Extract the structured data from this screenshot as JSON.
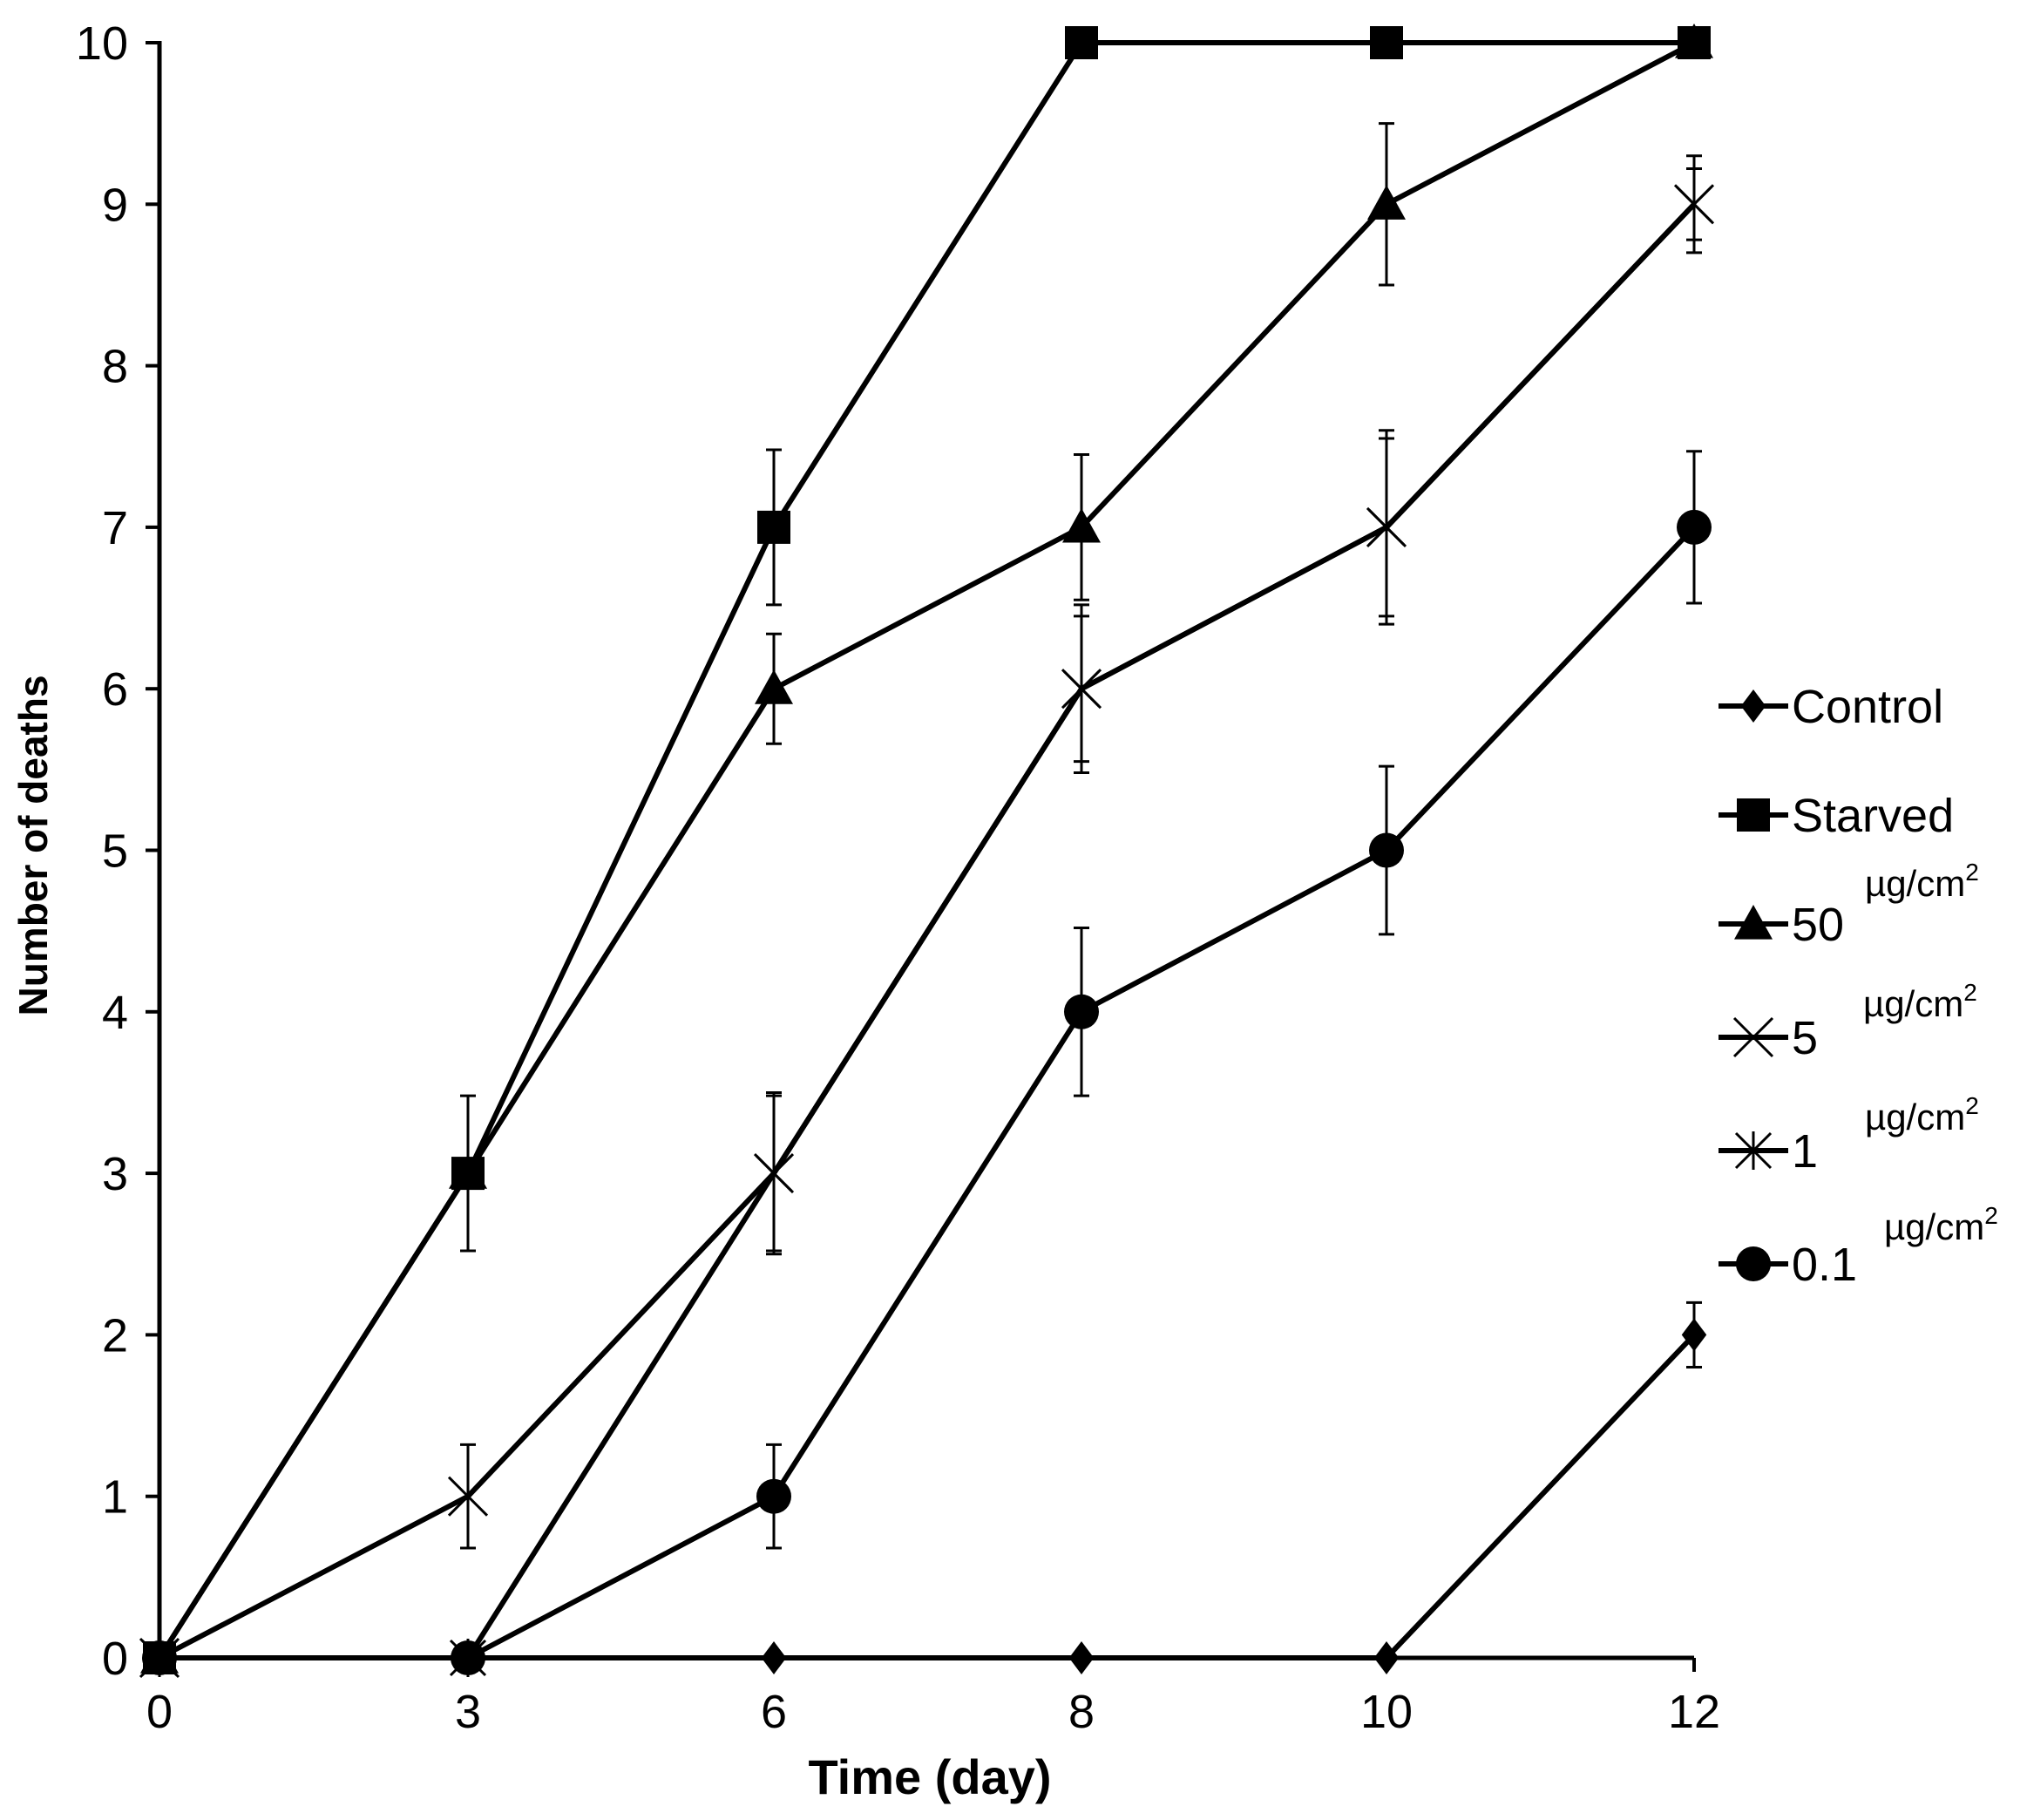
{
  "chart_data": {
    "type": "line",
    "title": "",
    "xlabel": "Time (day)",
    "ylabel": "Number of deaths",
    "categories": [
      "0",
      "3",
      "6",
      "8",
      "10",
      "12"
    ],
    "x": [
      0,
      3,
      6,
      8,
      10,
      12
    ],
    "yticks": [
      "0",
      "1",
      "2",
      "3",
      "4",
      "5",
      "6",
      "7",
      "8",
      "9",
      "10"
    ],
    "ylim": [
      0,
      10
    ],
    "grid": false,
    "legend_position": "right",
    "series": [
      {
        "name": "Control",
        "legend_label": "Control",
        "unit": "",
        "marker": "diamond",
        "values": [
          0,
          0,
          0,
          0,
          0,
          2
        ],
        "errors": [
          0,
          0,
          0,
          0,
          0,
          0.2
        ]
      },
      {
        "name": "Starved",
        "legend_label": "Starved",
        "unit": "",
        "marker": "square",
        "values": [
          0,
          3,
          7,
          10,
          10,
          10
        ],
        "errors": [
          0,
          0.48,
          0.48,
          0,
          0,
          0
        ]
      },
      {
        "name": "50 µg/cm2",
        "legend_label": "50",
        "unit": "µg/cm",
        "unit_sup": "2",
        "marker": "triangle",
        "values": [
          0,
          3,
          6,
          7,
          9,
          10
        ],
        "errors": [
          0,
          0,
          0.34,
          0.45,
          0.5,
          0
        ]
      },
      {
        "name": "5 µg/cm2",
        "legend_label": "5",
        "unit": "µg/cm",
        "unit_sup": "2",
        "marker": "x",
        "values": [
          0,
          1,
          3,
          6,
          7,
          9
        ],
        "errors": [
          0,
          0.32,
          0.48,
          0.52,
          0.6,
          0.3
        ]
      },
      {
        "name": "1 µg/cm2",
        "legend_label": "1",
        "unit": "µg/cm",
        "unit_sup": "2",
        "marker": "star",
        "values": [
          0,
          0,
          3,
          6,
          7,
          9
        ],
        "errors": [
          0,
          0,
          0.5,
          0.45,
          0.55,
          0.22
        ]
      },
      {
        "name": "0.1 µg/cm2",
        "legend_label": "0.1",
        "unit": "µg/cm",
        "unit_sup": "2",
        "marker": "circle",
        "values": [
          0,
          0,
          1,
          4,
          5,
          7
        ],
        "errors": [
          0,
          0,
          0.32,
          0.52,
          0.52,
          0.47
        ]
      }
    ]
  }
}
